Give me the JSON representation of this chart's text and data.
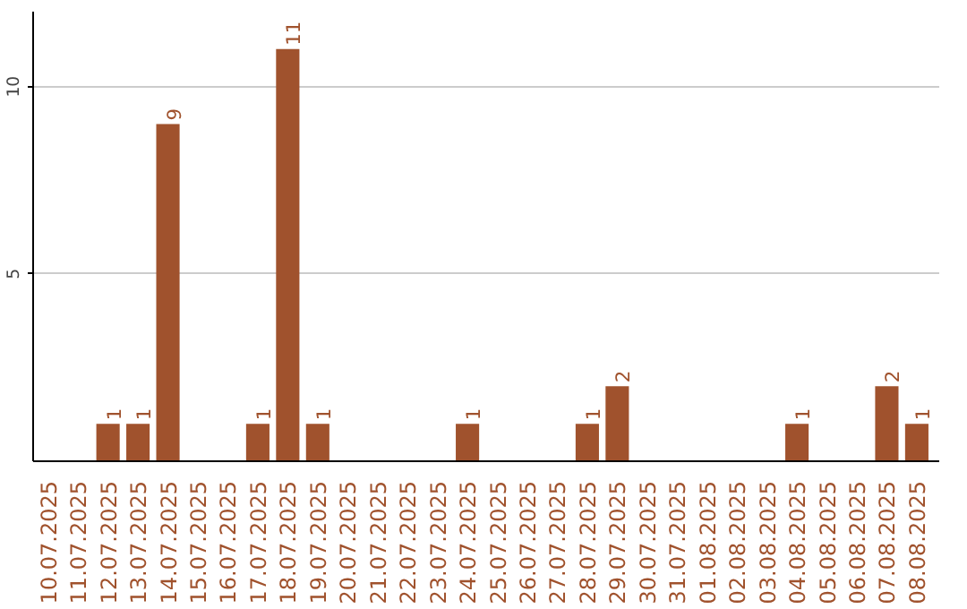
{
  "chart_data": {
    "type": "bar",
    "categories": [
      "10.07.2025",
      "11.07.2025",
      "12.07.2025",
      "13.07.2025",
      "14.07.2025",
      "15.07.2025",
      "16.07.2025",
      "17.07.2025",
      "18.07.2025",
      "19.07.2025",
      "20.07.2025",
      "21.07.2025",
      "22.07.2025",
      "23.07.2025",
      "24.07.2025",
      "25.07.2025",
      "26.07.2025",
      "27.07.2025",
      "28.07.2025",
      "29.07.2025",
      "30.07.2025",
      "31.07.2025",
      "01.08.2025",
      "02.08.2025",
      "03.08.2025",
      "04.08.2025",
      "05.08.2025",
      "06.08.2025",
      "07.08.2025",
      "08.08.2025"
    ],
    "values": [
      0,
      0,
      1,
      1,
      9,
      0,
      0,
      1,
      11,
      1,
      0,
      0,
      0,
      0,
      1,
      0,
      0,
      0,
      1,
      2,
      0,
      0,
      0,
      0,
      0,
      1,
      0,
      0,
      2,
      1
    ],
    "color": "#a0522d",
    "value_labels": [
      null,
      null,
      "1",
      "1",
      "9",
      null,
      null,
      "1",
      "11",
      "1",
      null,
      null,
      null,
      null,
      "1",
      null,
      null,
      null,
      "1",
      "2",
      null,
      null,
      null,
      null,
      null,
      "1",
      null,
      null,
      "2",
      "1"
    ],
    "ylim": [
      0,
      12
    ],
    "yticks": [
      5,
      10
    ],
    "grid": "y"
  }
}
